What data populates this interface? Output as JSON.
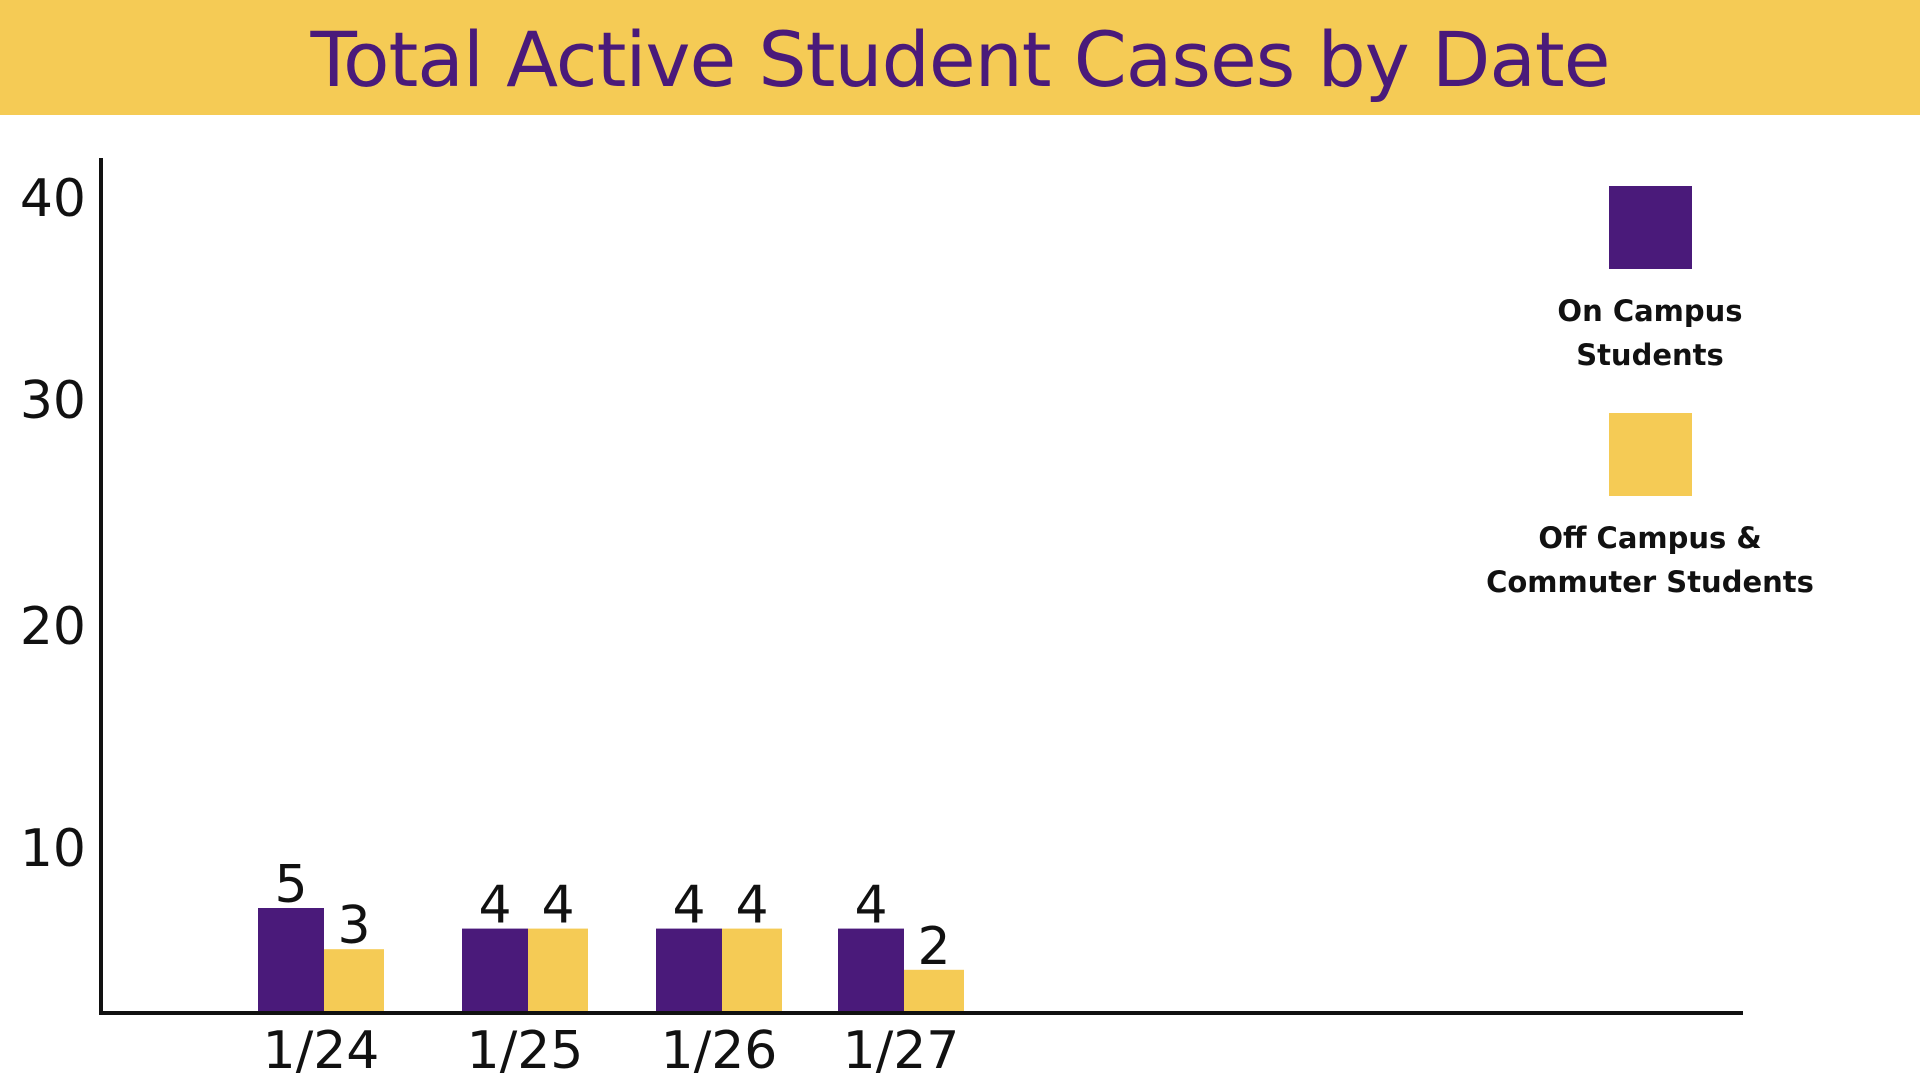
{
  "header": {
    "title": "Total Active Student Cases by Date"
  },
  "colors": {
    "header_bg": "#f5cb55",
    "title": "#4a1a7a",
    "on_campus": "#4a1a7a",
    "off_campus": "#f5cb55",
    "axis": "#111111"
  },
  "chart_data": {
    "type": "bar",
    "title": "Total Active Student Cases by Date",
    "xlabel": "",
    "ylabel": "",
    "categories": [
      "1/24",
      "1/25",
      "1/26",
      "1/27"
    ],
    "series": [
      {
        "name": "On Campus Students",
        "values": [
          5,
          4,
          4,
          4
        ],
        "color": "#4a1a7a"
      },
      {
        "name": "Off Campus & Commuter Students",
        "values": [
          3,
          4,
          4,
          2
        ],
        "color": "#f5cb55"
      }
    ],
    "yticks": [
      10,
      20,
      30,
      40
    ],
    "ylim": [
      0,
      40
    ],
    "grid": false,
    "legend": "right",
    "data_labels": true
  },
  "legend": {
    "items": [
      {
        "label": "On Campus\nStudents",
        "color": "#4a1a7a"
      },
      {
        "label": "Off Campus &\nCommuter Students",
        "color": "#f5cb55"
      }
    ]
  }
}
